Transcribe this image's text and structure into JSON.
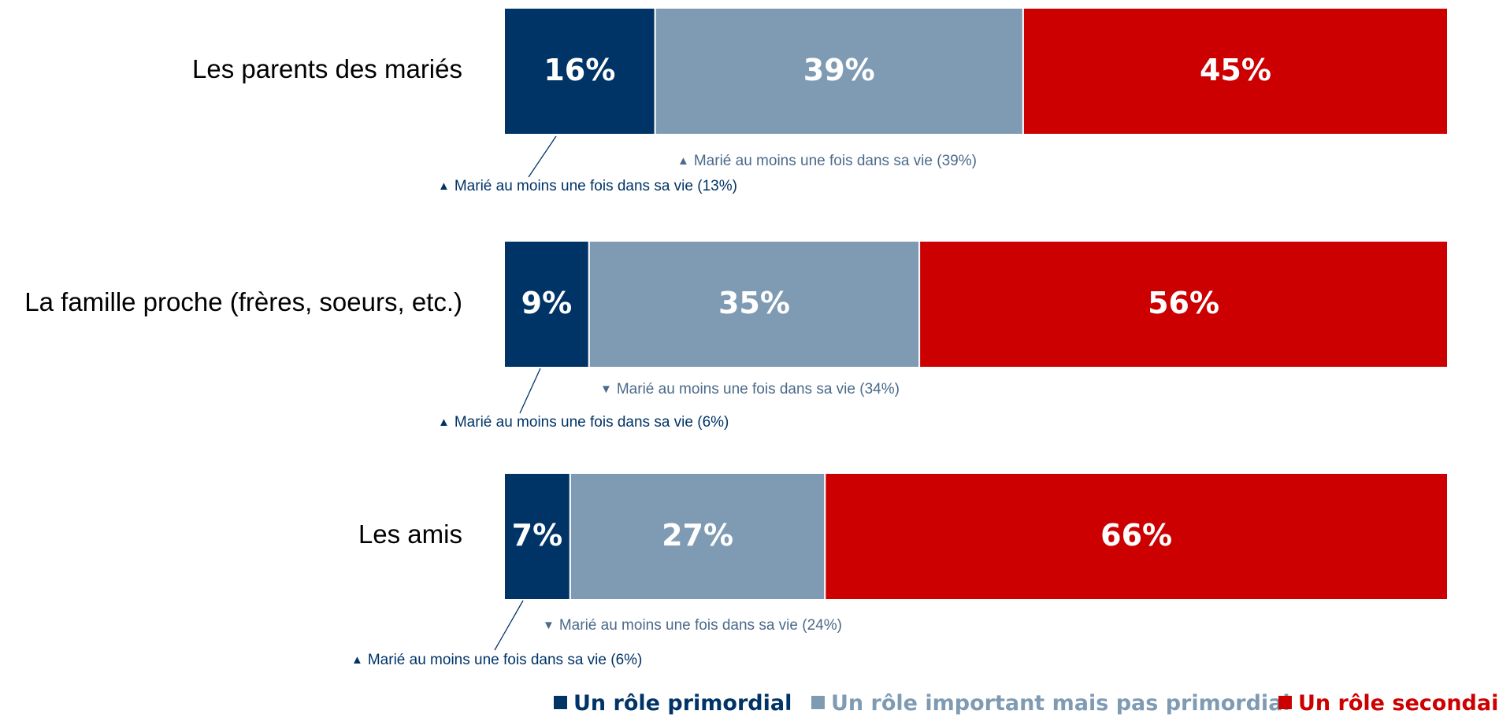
{
  "chart_data": {
    "type": "bar",
    "orientation": "horizontal",
    "stacked": true,
    "normalized": true,
    "categories": [
      "Les parents des mariés",
      "La famille proche (frères, soeurs, etc.)",
      "Les amis"
    ],
    "series": [
      {
        "name": "Un rôle primordial",
        "values": [
          16,
          9,
          7
        ],
        "labels": [
          "16%",
          "9%",
          "7%"
        ],
        "color": "#003366"
      },
      {
        "name": "Un rôle important mais pas primordial",
        "values": [
          39,
          35,
          27
        ],
        "labels": [
          "39%",
          "35%",
          "27%"
        ],
        "color": "#7f9bb3"
      },
      {
        "name": "Un rôle secondaire",
        "values": [
          45,
          56,
          66
        ],
        "labels": [
          "45%",
          "56%",
          "66%"
        ],
        "color": "#cc0000"
      }
    ],
    "annotations": [
      {
        "category": 0,
        "series": 1,
        "text": "Marié au moins une fois dans sa vie (39%)",
        "symbol": "▲",
        "direction": "up",
        "color": "#4a6a8a"
      },
      {
        "category": 0,
        "series": 0,
        "text": "Marié au moins une fois dans sa vie (13%)",
        "symbol": "▲",
        "direction": "up",
        "color": "#003366"
      },
      {
        "category": 1,
        "series": 1,
        "text": "Marié au moins une fois dans sa vie (34%)",
        "symbol": "▼",
        "direction": "down",
        "color": "#4a6a8a"
      },
      {
        "category": 1,
        "series": 0,
        "text": "Marié au moins une fois dans sa vie (6%)",
        "symbol": "▲",
        "direction": "up",
        "color": "#003366"
      },
      {
        "category": 2,
        "series": 1,
        "text": "Marié au moins une fois dans sa vie (24%)",
        "symbol": "▼",
        "direction": "down",
        "color": "#4a6a8a"
      },
      {
        "category": 2,
        "series": 0,
        "text": "Marié au moins une fois dans sa vie (6%)",
        "symbol": "▲",
        "direction": "up",
        "color": "#003366"
      }
    ],
    "legend": {
      "position": "bottom-right",
      "marker": "■"
    },
    "grid": false,
    "xlim": [
      0,
      100
    ]
  }
}
